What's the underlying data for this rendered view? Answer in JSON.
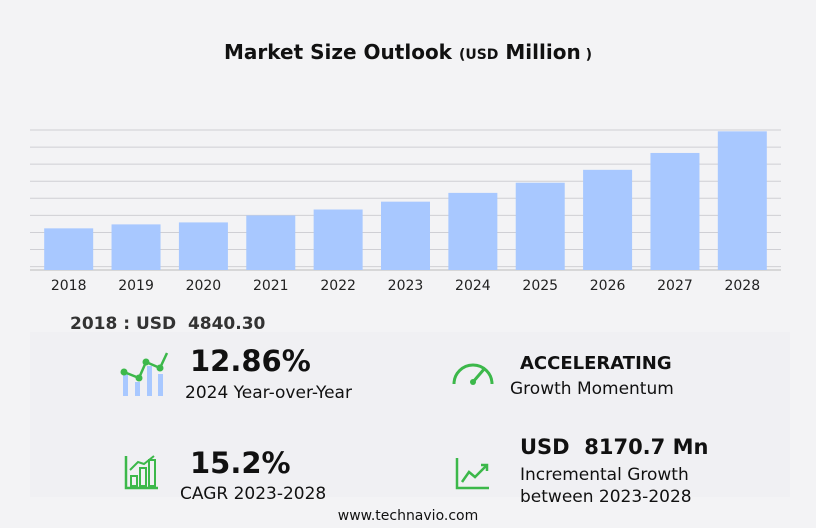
{
  "title": {
    "main": "Market Size Outlook",
    "paren_open": "(",
    "currency": "USD",
    "unit": "Million",
    "paren_close": ")"
  },
  "chart_data": {
    "type": "bar",
    "title": "Market Size Outlook (USD Million)",
    "categories": [
      "2018",
      "2019",
      "2020",
      "2021",
      "2022",
      "2023",
      "2024",
      "2025",
      "2026",
      "2027",
      "2028"
    ],
    "values": [
      4840.3,
      5300,
      5530,
      6340,
      7030,
      7940,
      8961,
      10140,
      11640,
      13600,
      16110
    ],
    "ylim": [
      0,
      16500
    ],
    "grid": true,
    "color": "#a8c8ff"
  },
  "base_label": "2018 : USD  4840.30",
  "stats": [
    {
      "value": "12.86%",
      "label": "2024 Year-over-Year",
      "icon": "chart-growth-icon"
    },
    {
      "value": "ACCELERATING",
      "label": "Growth Momentum",
      "icon": "speedometer-icon"
    },
    {
      "value": "15.2%",
      "label": "CAGR 2023-2028",
      "icon": "bar-chart-icon"
    },
    {
      "value": "USD  8170.7 Mn",
      "label": "Incremental Growth",
      "label2": "between 2023-2028",
      "icon": "line-chart-icon"
    }
  ],
  "footer": "www.technavio.com"
}
